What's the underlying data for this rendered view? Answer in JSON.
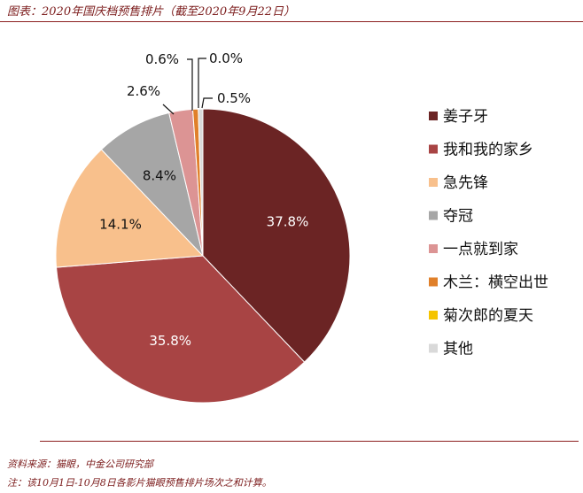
{
  "header": {
    "title": "图表：2020年国庆档预售排片（截至2020年9月22日）"
  },
  "footer": {
    "source": "资料来源：猫眼，中金公司研究部",
    "note": "注：该10月1日-10月8日各影片猫眼预售排片场次之和计算。"
  },
  "chart_data": {
    "type": "pie",
    "title": "",
    "unit": "%",
    "legend_position": "right",
    "slices": [
      {
        "name": "姜子牙",
        "value": 37.8,
        "label": "37.8%",
        "color": "#6b2424"
      },
      {
        "name": "我和我的家乡",
        "value": 35.8,
        "label": "35.8%",
        "color": "#a84444"
      },
      {
        "name": "急先锋",
        "value": 14.1,
        "label": "14.1%",
        "color": "#f8c08c"
      },
      {
        "name": "夺冠",
        "value": 8.4,
        "label": "8.4%",
        "color": "#a6a6a6"
      },
      {
        "name": "一点就到家",
        "value": 2.6,
        "label": "2.6%",
        "color": "#dc9494"
      },
      {
        "name": "木兰：横空出世",
        "value": 0.6,
        "label": "0.6%",
        "color": "#e0802a"
      },
      {
        "name": "菊次郎的夏天",
        "value": 0.0,
        "label": "0.0%",
        "color": "#f5c400"
      },
      {
        "name": "其他",
        "value": 0.5,
        "label": "0.5%",
        "color": "#d9d9d9"
      }
    ]
  }
}
